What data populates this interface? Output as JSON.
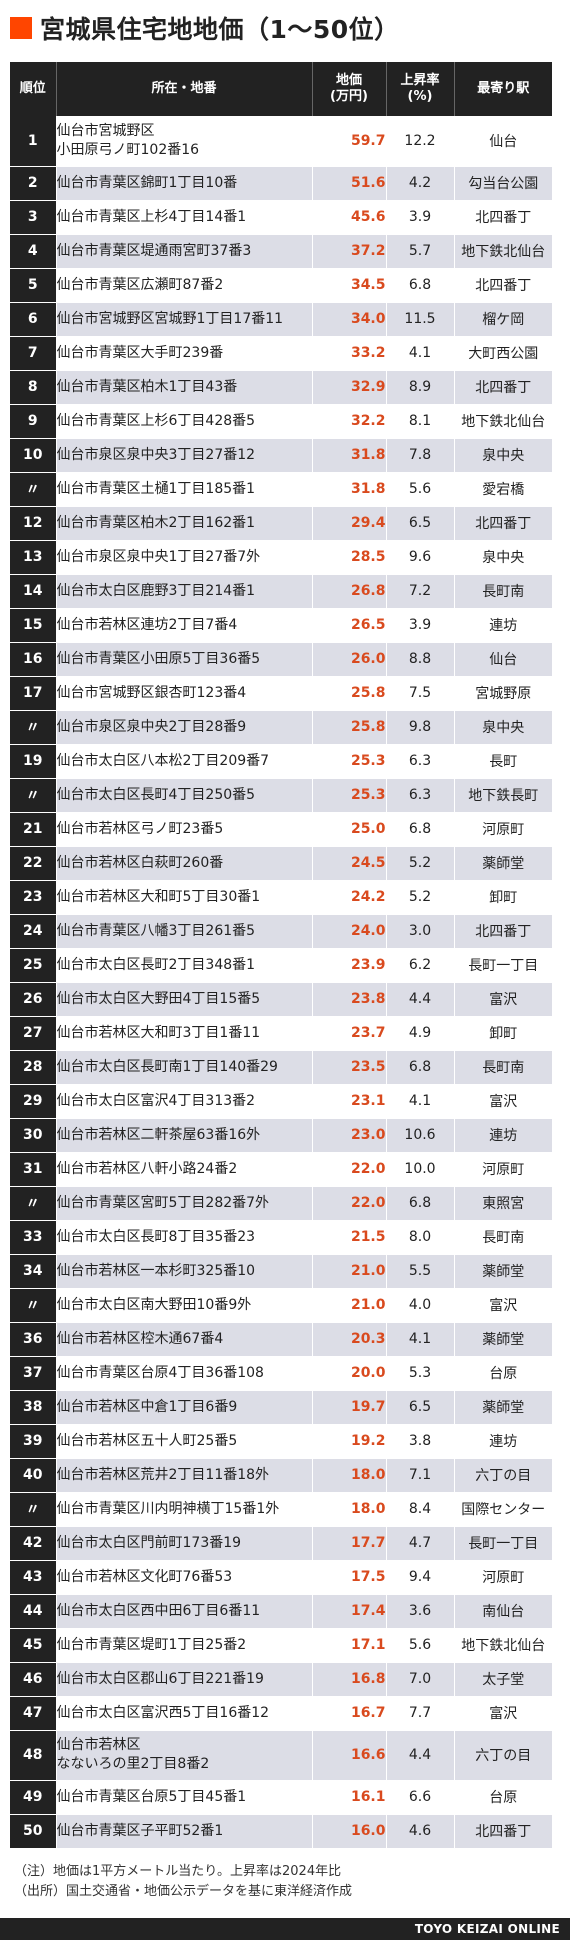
{
  "title": "宮城県住宅地地価（1〜50位）",
  "headers": {
    "rank": "順位",
    "address": "所在・地番",
    "price_line1": "地価",
    "price_line2": "(万円)",
    "rate_line1": "上昇率",
    "rate_line2": "(%)",
    "station": "最寄り駅"
  },
  "rows": [
    {
      "rank": "1",
      "address_lines": [
        "仙台市宮城野区",
        "小田原弓ノ町102番16"
      ],
      "price": "59.7",
      "rate": "12.2",
      "station": "仙台"
    },
    {
      "rank": "2",
      "address_lines": [
        "仙台市青葉区錦町1丁目10番"
      ],
      "price": "51.6",
      "rate": "4.2",
      "station": "勾当台公園"
    },
    {
      "rank": "3",
      "address_lines": [
        "仙台市青葉区上杉4丁目14番1"
      ],
      "price": "45.6",
      "rate": "3.9",
      "station": "北四番丁"
    },
    {
      "rank": "4",
      "address_lines": [
        "仙台市青葉区堤通雨宮町37番3"
      ],
      "price": "37.2",
      "rate": "5.7",
      "station": "地下鉄北仙台"
    },
    {
      "rank": "5",
      "address_lines": [
        "仙台市青葉区広瀬町87番2"
      ],
      "price": "34.5",
      "rate": "6.8",
      "station": "北四番丁"
    },
    {
      "rank": "6",
      "address_lines": [
        "仙台市宮城野区宮城野1丁目17番11"
      ],
      "price": "34.0",
      "rate": "11.5",
      "station": "榴ケ岡"
    },
    {
      "rank": "7",
      "address_lines": [
        "仙台市青葉区大手町239番"
      ],
      "price": "33.2",
      "rate": "4.1",
      "station": "大町西公園"
    },
    {
      "rank": "8",
      "address_lines": [
        "仙台市青葉区柏木1丁目43番"
      ],
      "price": "32.9",
      "rate": "8.9",
      "station": "北四番丁"
    },
    {
      "rank": "9",
      "address_lines": [
        "仙台市青葉区上杉6丁目428番5"
      ],
      "price": "32.2",
      "rate": "8.1",
      "station": "地下鉄北仙台"
    },
    {
      "rank": "10",
      "address_lines": [
        "仙台市泉区泉中央3丁目27番12"
      ],
      "price": "31.8",
      "rate": "7.8",
      "station": "泉中央"
    },
    {
      "rank": "〃",
      "address_lines": [
        "仙台市青葉区土樋1丁目185番1"
      ],
      "price": "31.8",
      "rate": "5.6",
      "station": "愛宕橋"
    },
    {
      "rank": "12",
      "address_lines": [
        "仙台市青葉区柏木2丁目162番1"
      ],
      "price": "29.4",
      "rate": "6.5",
      "station": "北四番丁"
    },
    {
      "rank": "13",
      "address_lines": [
        "仙台市泉区泉中央1丁目27番7外"
      ],
      "price": "28.5",
      "rate": "9.6",
      "station": "泉中央"
    },
    {
      "rank": "14",
      "address_lines": [
        "仙台市太白区鹿野3丁目214番1"
      ],
      "price": "26.8",
      "rate": "7.2",
      "station": "長町南"
    },
    {
      "rank": "15",
      "address_lines": [
        "仙台市若林区連坊2丁目7番4"
      ],
      "price": "26.5",
      "rate": "3.9",
      "station": "連坊"
    },
    {
      "rank": "16",
      "address_lines": [
        "仙台市青葉区小田原5丁目36番5"
      ],
      "price": "26.0",
      "rate": "8.8",
      "station": "仙台"
    },
    {
      "rank": "17",
      "address_lines": [
        "仙台市宮城野区銀杏町123番4"
      ],
      "price": "25.8",
      "rate": "7.5",
      "station": "宮城野原"
    },
    {
      "rank": "〃",
      "address_lines": [
        "仙台市泉区泉中央2丁目28番9"
      ],
      "price": "25.8",
      "rate": "9.8",
      "station": "泉中央"
    },
    {
      "rank": "19",
      "address_lines": [
        "仙台市太白区八本松2丁目209番7"
      ],
      "price": "25.3",
      "rate": "6.3",
      "station": "長町"
    },
    {
      "rank": "〃",
      "address_lines": [
        "仙台市太白区長町4丁目250番5"
      ],
      "price": "25.3",
      "rate": "6.3",
      "station": "地下鉄長町"
    },
    {
      "rank": "21",
      "address_lines": [
        "仙台市若林区弓ノ町23番5"
      ],
      "price": "25.0",
      "rate": "6.8",
      "station": "河原町"
    },
    {
      "rank": "22",
      "address_lines": [
        "仙台市若林区白萩町260番"
      ],
      "price": "24.5",
      "rate": "5.2",
      "station": "薬師堂"
    },
    {
      "rank": "23",
      "address_lines": [
        "仙台市若林区大和町5丁目30番1"
      ],
      "price": "24.2",
      "rate": "5.2",
      "station": "卸町"
    },
    {
      "rank": "24",
      "address_lines": [
        "仙台市青葉区八幡3丁目261番5"
      ],
      "price": "24.0",
      "rate": "3.0",
      "station": "北四番丁"
    },
    {
      "rank": "25",
      "address_lines": [
        "仙台市太白区長町2丁目348番1"
      ],
      "price": "23.9",
      "rate": "6.2",
      "station": "長町一丁目"
    },
    {
      "rank": "26",
      "address_lines": [
        "仙台市太白区大野田4丁目15番5"
      ],
      "price": "23.8",
      "rate": "4.4",
      "station": "富沢"
    },
    {
      "rank": "27",
      "address_lines": [
        "仙台市若林区大和町3丁目1番11"
      ],
      "price": "23.7",
      "rate": "4.9",
      "station": "卸町"
    },
    {
      "rank": "28",
      "address_lines": [
        "仙台市太白区長町南1丁目140番29"
      ],
      "price": "23.5",
      "rate": "6.8",
      "station": "長町南"
    },
    {
      "rank": "29",
      "address_lines": [
        "仙台市太白区富沢4丁目313番2"
      ],
      "price": "23.1",
      "rate": "4.1",
      "station": "富沢"
    },
    {
      "rank": "30",
      "address_lines": [
        "仙台市若林区二軒茶屋63番16外"
      ],
      "price": "23.0",
      "rate": "10.6",
      "station": "連坊"
    },
    {
      "rank": "31",
      "address_lines": [
        "仙台市若林区八軒小路24番2"
      ],
      "price": "22.0",
      "rate": "10.0",
      "station": "河原町"
    },
    {
      "rank": "〃",
      "address_lines": [
        "仙台市青葉区宮町5丁目282番7外"
      ],
      "price": "22.0",
      "rate": "6.8",
      "station": "東照宮"
    },
    {
      "rank": "33",
      "address_lines": [
        "仙台市太白区長町8丁目35番23"
      ],
      "price": "21.5",
      "rate": "8.0",
      "station": "長町南"
    },
    {
      "rank": "34",
      "address_lines": [
        "仙台市若林区一本杉町325番10"
      ],
      "price": "21.0",
      "rate": "5.5",
      "station": "薬師堂"
    },
    {
      "rank": "〃",
      "address_lines": [
        "仙台市太白区南大野田10番9外"
      ],
      "price": "21.0",
      "rate": "4.0",
      "station": "富沢"
    },
    {
      "rank": "36",
      "address_lines": [
        "仙台市若林区椌木通67番4"
      ],
      "price": "20.3",
      "rate": "4.1",
      "station": "薬師堂"
    },
    {
      "rank": "37",
      "address_lines": [
        "仙台市青葉区台原4丁目36番108"
      ],
      "price": "20.0",
      "rate": "5.3",
      "station": "台原"
    },
    {
      "rank": "38",
      "address_lines": [
        "仙台市若林区中倉1丁目6番9"
      ],
      "price": "19.7",
      "rate": "6.5",
      "station": "薬師堂"
    },
    {
      "rank": "39",
      "address_lines": [
        "仙台市若林区五十人町25番5"
      ],
      "price": "19.2",
      "rate": "3.8",
      "station": "連坊"
    },
    {
      "rank": "40",
      "address_lines": [
        "仙台市若林区荒井2丁目11番18外"
      ],
      "price": "18.0",
      "rate": "7.1",
      "station": "六丁の目"
    },
    {
      "rank": "〃",
      "address_lines": [
        "仙台市青葉区川内明神横丁15番1外"
      ],
      "price": "18.0",
      "rate": "8.4",
      "station": "国際センター"
    },
    {
      "rank": "42",
      "address_lines": [
        "仙台市太白区門前町173番19"
      ],
      "price": "17.7",
      "rate": "4.7",
      "station": "長町一丁目"
    },
    {
      "rank": "43",
      "address_lines": [
        "仙台市若林区文化町76番53"
      ],
      "price": "17.5",
      "rate": "9.4",
      "station": "河原町"
    },
    {
      "rank": "44",
      "address_lines": [
        "仙台市太白区西中田6丁目6番11"
      ],
      "price": "17.4",
      "rate": "3.6",
      "station": "南仙台"
    },
    {
      "rank": "45",
      "address_lines": [
        "仙台市青葉区堤町1丁目25番2"
      ],
      "price": "17.1",
      "rate": "5.6",
      "station": "地下鉄北仙台"
    },
    {
      "rank": "46",
      "address_lines": [
        "仙台市太白区郡山6丁目221番19"
      ],
      "price": "16.8",
      "rate": "7.0",
      "station": "太子堂"
    },
    {
      "rank": "47",
      "address_lines": [
        "仙台市太白区富沢西5丁目16番12"
      ],
      "price": "16.7",
      "rate": "7.7",
      "station": "富沢"
    },
    {
      "rank": "48",
      "address_lines": [
        "仙台市若林区",
        "なないろの里2丁目8番2"
      ],
      "price": "16.6",
      "rate": "4.4",
      "station": "六丁の目"
    },
    {
      "rank": "49",
      "address_lines": [
        "仙台市青葉区台原5丁目45番1"
      ],
      "price": "16.1",
      "rate": "6.6",
      "station": "台原"
    },
    {
      "rank": "50",
      "address_lines": [
        "仙台市青葉区子平町52番1"
      ],
      "price": "16.0",
      "rate": "4.6",
      "station": "北四番丁"
    }
  ],
  "notes": {
    "note": "（注）地価は1平方メートル当たり。上昇率は2024年比",
    "source": "（出所）国土交通省・地価公示データを基に東洋経済作成"
  },
  "brand": "TOYO KEIZAI ONLINE",
  "colors": {
    "accent": "#ff4500",
    "price_text": "#d94a1e",
    "header_bg": "#222222",
    "row_alt_bg": "#dcdde6"
  }
}
